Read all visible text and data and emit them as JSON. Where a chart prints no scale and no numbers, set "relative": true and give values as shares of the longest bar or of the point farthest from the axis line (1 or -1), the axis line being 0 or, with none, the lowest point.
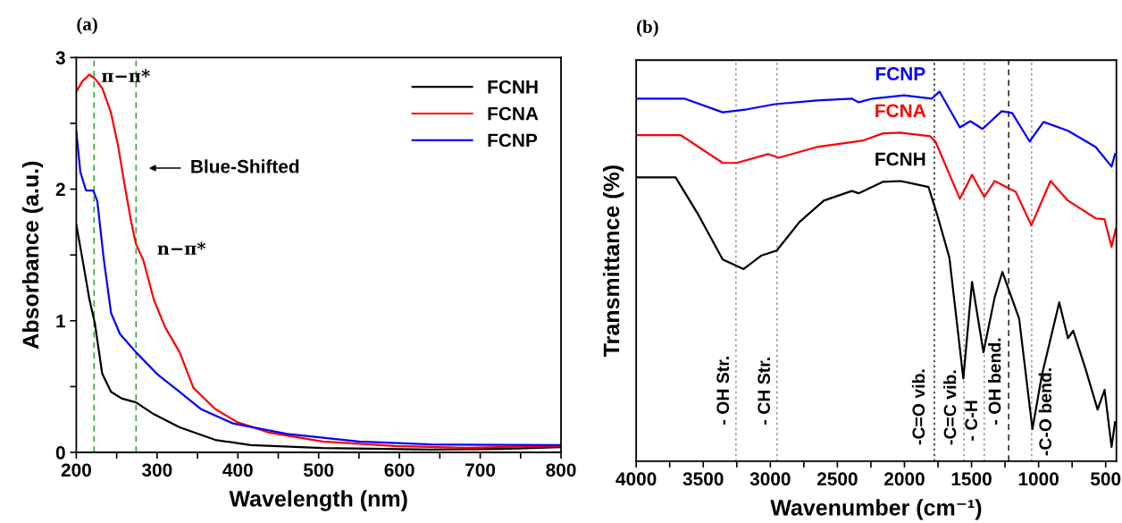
{
  "chart_data": [
    {
      "type": "line",
      "title": "(a)",
      "xlabel": "Wavelength (nm)",
      "ylabel": "Absorbance (a.u.)",
      "xlim": [
        200,
        800
      ],
      "xticks": [
        200,
        {
          "value": 250,
          "label": null
        },
        300,
        {
          "value": 350,
          "label": null
        },
        400,
        {
          "value": 450,
          "label": null
        },
        500,
        {
          "value": 550,
          "label": null
        },
        600,
        {
          "value": 650,
          "label": null
        },
        700,
        {
          "value": 750,
          "label": null
        },
        800
      ],
      "ylim": [
        0,
        3
      ],
      "yticks": [
        0,
        {
          "value": 0.5,
          "label": null
        },
        1,
        {
          "value": 1.5,
          "label": null
        },
        2,
        {
          "value": 2.5,
          "label": null
        },
        3
      ],
      "legend": "top right",
      "grid": false,
      "series": [
        {
          "name": "FCNH",
          "color": "#000000",
          "x": [
            200,
            207.6,
            216,
            223,
            232,
            243,
            256,
            274,
            296,
            328,
            372,
            416,
            505,
            639,
            728,
            799
          ],
          "values": [
            1.73,
            1.47,
            1.17,
            0.98,
            0.6,
            0.46,
            0.41,
            0.38,
            0.29,
            0.19,
            0.095,
            0.055,
            0.033,
            0.022,
            0.027,
            0.04
          ]
        },
        {
          "name": "FCNA",
          "color": "#ff0000",
          "x": [
            200,
            207.6,
            216,
            223,
            232,
            243,
            252,
            261,
            268,
            274,
            283,
            296,
            310,
            328,
            345,
            372,
            399,
            439,
            505,
            594,
            683,
            799
          ],
          "values": [
            2.74,
            2.82,
            2.87,
            2.84,
            2.77,
            2.58,
            2.32,
            1.99,
            1.75,
            1.58,
            1.46,
            1.16,
            0.95,
            0.76,
            0.49,
            0.33,
            0.23,
            0.15,
            0.082,
            0.049,
            0.035,
            0.05
          ]
        },
        {
          "name": "FCNP",
          "color": "#0000ff",
          "x": [
            200,
            205,
            212,
            221,
            226,
            234,
            243,
            254,
            274,
            301,
            328,
            354,
            394,
            461,
            550,
            639,
            799
          ],
          "values": [
            2.44,
            2.13,
            1.99,
            1.99,
            1.91,
            1.47,
            1.06,
            0.9,
            0.76,
            0.59,
            0.46,
            0.33,
            0.22,
            0.14,
            0.082,
            0.06,
            0.055
          ]
        }
      ],
      "ref_lines": [
        {
          "axis": "x",
          "value": 222,
          "color": "#33aa33",
          "line_style": "dashed"
        },
        {
          "axis": "x",
          "value": 274,
          "color": "#33aa33",
          "line_style": "dashed"
        }
      ],
      "annotations": [
        "π−π*",
        "n−π*",
        "Blue-Shifted"
      ]
    },
    {
      "type": "line",
      "title": "(b)",
      "xlabel": "Wavenumber (cm⁻¹)",
      "ylabel": "Transmittance (%)",
      "relative": true,
      "xlim": [
        4000,
        420
      ],
      "xticks": [
        4000,
        {
          "value": 3750,
          "label": null
        },
        3500,
        {
          "value": 3250,
          "label": null
        },
        3000,
        {
          "value": 2750,
          "label": null
        },
        2500,
        {
          "value": 2250,
          "label": null
        },
        2000,
        {
          "value": 1750,
          "label": null
        },
        1500,
        {
          "value": 1250,
          "label": null
        },
        1000,
        {
          "value": 750,
          "label": null
        },
        500
      ],
      "legend": false,
      "grid": false,
      "series": [
        {
          "name": "FCNP",
          "color": "#0000ff",
          "x": [
            4000,
            3641,
            3355,
            3173,
            2965,
            2653,
            2393,
            2341,
            2237,
            2003,
            1795,
            1738,
            1587,
            1509,
            1418,
            1275,
            1197,
            1067,
            963,
            781,
            574,
            456,
            430
          ],
          "values": [
            0.981,
            0.981,
            0.944,
            0.952,
            0.966,
            0.976,
            0.981,
            0.971,
            0.981,
            0.99,
            0.981,
            1.0,
            0.903,
            0.92,
            0.899,
            0.947,
            0.942,
            0.865,
            0.918,
            0.894,
            0.85,
            0.797,
            0.831
          ]
        },
        {
          "name": "FCNA",
          "color": "#ff0000",
          "x": [
            4000,
            3667,
            3355,
            3251,
            3017,
            2939,
            2653,
            2315,
            2159,
            2029,
            1808,
            1769,
            1587,
            1496,
            1405,
            1327,
            1171,
            1054,
            911,
            781,
            574,
            509,
            456,
            425
          ],
          "values": [
            0.882,
            0.882,
            0.807,
            0.807,
            0.831,
            0.821,
            0.85,
            0.867,
            0.887,
            0.889,
            0.879,
            0.865,
            0.71,
            0.775,
            0.715,
            0.758,
            0.729,
            0.638,
            0.758,
            0.705,
            0.657,
            0.655,
            0.58,
            0.628
          ]
        },
        {
          "name": "FCNH",
          "color": "#000000",
          "x": [
            4000,
            3706,
            3537,
            3355,
            3199,
            3069,
            2952,
            2783,
            2601,
            2393,
            2341,
            2159,
            2029,
            1821,
            1756,
            1665,
            1561,
            1496,
            1411,
            1327,
            1270,
            1145,
            1046,
            976,
            846,
            781,
            742,
            651,
            560,
            508,
            456,
            430
          ],
          "values": [
            0.768,
            0.768,
            0.667,
            0.546,
            0.52,
            0.556,
            0.57,
            0.647,
            0.705,
            0.731,
            0.725,
            0.756,
            0.758,
            0.742,
            0.667,
            0.551,
            0.224,
            0.485,
            0.295,
            0.444,
            0.512,
            0.386,
            0.087,
            0.232,
            0.43,
            0.333,
            0.353,
            0.251,
            0.14,
            0.193,
            0.039,
            0.106
          ]
        }
      ],
      "ref_lines": [
        {
          "axis": "x",
          "value": 3256,
          "color": "#999999",
          "line_style": "dotted",
          "label": "- OH Str."
        },
        {
          "axis": "x",
          "value": 2950,
          "color": "#999999",
          "line_style": "dotted",
          "label": "- CH Str."
        },
        {
          "axis": "x",
          "value": 1777,
          "color": "#333333",
          "line_style": "dotted",
          "label": "-C=O vib."
        },
        {
          "axis": "x",
          "value": 1556,
          "color": "#999999",
          "line_style": "dotted",
          "label": "-C=C vib."
        },
        {
          "axis": "x",
          "value": 1405,
          "color": "#999999",
          "line_style": "dotted",
          "label": "- C-H"
        },
        {
          "axis": "x",
          "value": 1223,
          "color": "#333333",
          "line_style": "dashed",
          "label": "- OH bend."
        },
        {
          "axis": "x",
          "value": 1052,
          "color": "#999999",
          "line_style": "dotted",
          "label": "-C-O bend."
        }
      ]
    }
  ]
}
